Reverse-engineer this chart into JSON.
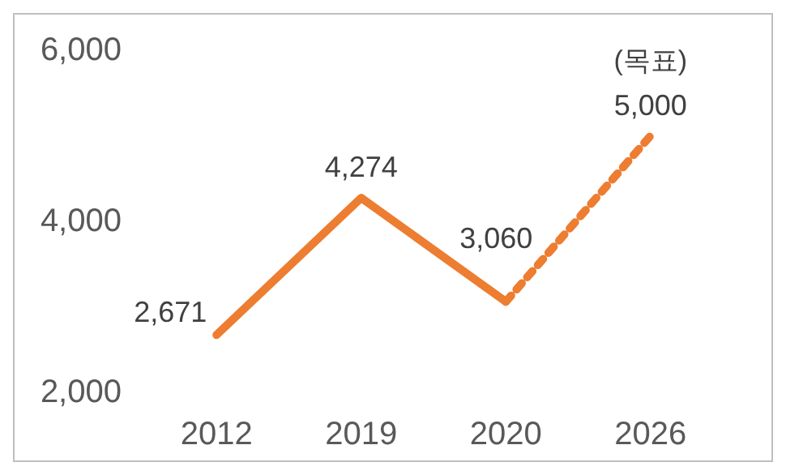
{
  "chart_data": {
    "type": "line",
    "categories": [
      "2012",
      "2019",
      "2020",
      "2026"
    ],
    "series": [
      {
        "color": "#ed7d31",
        "line_style": "solid",
        "values": [
          2671,
          4274,
          3060,
          null
        ],
        "value_labels": [
          "2,671",
          "4,274",
          "3,060",
          null
        ]
      },
      {
        "color": "#ed7d31",
        "line_style": "dotted",
        "values": [
          null,
          null,
          3060,
          5000
        ],
        "value_labels": [
          null,
          null,
          null,
          "5,000"
        ]
      }
    ],
    "ylim": [
      2000,
      6000
    ],
    "yticks": [
      {
        "value": 2000,
        "label": "2,000"
      },
      {
        "value": 4000,
        "label": "4,000"
      },
      {
        "value": 6000,
        "label": "6,000"
      }
    ],
    "grid": false,
    "marker": "none",
    "annotations": [
      {
        "text": "(목표)",
        "x": "2026",
        "y": 5000
      }
    ]
  }
}
